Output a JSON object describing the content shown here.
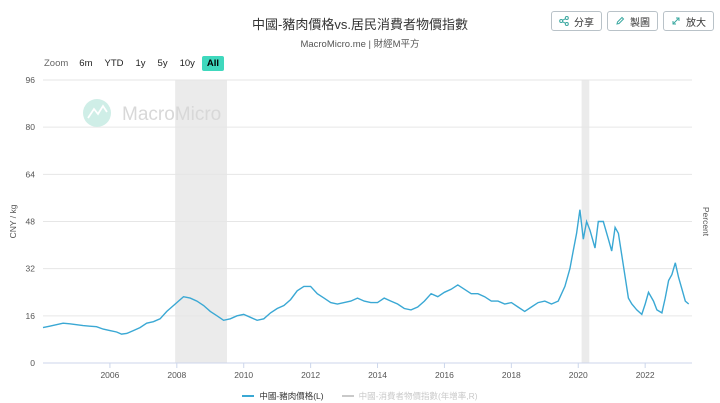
{
  "header": {
    "title": "中國-豬肉價格vs.居民消費者物價指數",
    "subtitle": "MacroMicro.me | 財經M平方"
  },
  "toolbar": {
    "share_label": "分享",
    "export_label": "製圖",
    "expand_label": "放大"
  },
  "zoom": {
    "label": "Zoom",
    "options": [
      "6m",
      "YTD",
      "1y",
      "5y",
      "10y",
      "All"
    ],
    "selected": "All"
  },
  "watermark": "MacroMicro",
  "colors": {
    "series_primary": "#3aa8d4",
    "series_hidden": "#c9c9c9",
    "shade": "#ebebeb",
    "grid": "#e6e6e6",
    "accent": "#3fd8bd"
  },
  "chart_data": {
    "type": "line",
    "ylabel": "CNY / kg",
    "y2label": "Percent",
    "ylim": [
      0,
      96
    ],
    "yticks": [
      0,
      16,
      32,
      48,
      64,
      80,
      96
    ],
    "xlim": [
      2004.0,
      2023.4
    ],
    "xticks": [
      2006,
      2008,
      2010,
      2012,
      2014,
      2016,
      2018,
      2020,
      2022
    ],
    "shaded_periods": [
      [
        2007.95,
        2009.5
      ],
      [
        2020.1,
        2020.33
      ]
    ],
    "grid": true,
    "legend_position": "bottom",
    "series": [
      {
        "name": "中國-豬肉價格(L)",
        "visible": true,
        "x": [
          2004.0,
          2004.2,
          2004.4,
          2004.6,
          2004.8,
          2005.0,
          2005.2,
          2005.4,
          2005.6,
          2005.8,
          2006.0,
          2006.2,
          2006.35,
          2006.5,
          2006.7,
          2006.9,
          2007.1,
          2007.3,
          2007.5,
          2007.7,
          2007.85,
          2008.0,
          2008.2,
          2008.4,
          2008.6,
          2008.8,
          2009.0,
          2009.2,
          2009.4,
          2009.6,
          2009.8,
          2010.0,
          2010.2,
          2010.4,
          2010.6,
          2010.8,
          2011.0,
          2011.2,
          2011.4,
          2011.6,
          2011.8,
          2012.0,
          2012.2,
          2012.4,
          2012.6,
          2012.8,
          2013.0,
          2013.2,
          2013.4,
          2013.6,
          2013.8,
          2014.0,
          2014.2,
          2014.4,
          2014.6,
          2014.8,
          2015.0,
          2015.2,
          2015.4,
          2015.6,
          2015.8,
          2016.0,
          2016.2,
          2016.4,
          2016.6,
          2016.8,
          2017.0,
          2017.2,
          2017.4,
          2017.6,
          2017.8,
          2018.0,
          2018.2,
          2018.4,
          2018.6,
          2018.8,
          2019.0,
          2019.2,
          2019.4,
          2019.6,
          2019.75,
          2019.85,
          2019.95,
          2020.05,
          2020.15,
          2020.25,
          2020.35,
          2020.5,
          2020.6,
          2020.75,
          2020.9,
          2021.0,
          2021.1,
          2021.2,
          2021.35,
          2021.5,
          2021.6,
          2021.75,
          2021.9,
          2022.0,
          2022.1,
          2022.25,
          2022.35,
          2022.5,
          2022.6,
          2022.7,
          2022.8,
          2022.9,
          2023.0,
          2023.1,
          2023.2,
          2023.3
        ],
        "y": [
          12,
          12.5,
          13,
          13.5,
          13.3,
          13,
          12.7,
          12.5,
          12.3,
          11.5,
          11,
          10.5,
          9.8,
          10,
          11,
          12,
          13.5,
          14,
          15,
          17.5,
          19,
          20.5,
          22.5,
          22,
          21,
          19.5,
          17.5,
          16,
          14.5,
          15,
          16,
          16.5,
          15.5,
          14.5,
          15,
          17,
          18.5,
          19.5,
          21.5,
          24.5,
          26,
          26,
          23.5,
          22,
          20.5,
          20,
          20.5,
          21,
          22,
          21,
          20.5,
          20.5,
          22,
          21,
          20,
          18.5,
          18,
          19,
          21,
          23.5,
          22.5,
          24,
          25,
          26.5,
          25,
          23.5,
          23.5,
          22.5,
          21,
          21,
          20,
          20.5,
          19,
          17.5,
          19,
          20.5,
          21,
          20,
          21,
          26,
          32,
          38,
          44,
          52,
          42,
          48,
          45,
          39,
          48,
          48,
          42,
          38,
          46,
          44,
          33,
          22,
          20,
          18,
          16.5,
          20,
          24,
          21,
          18,
          17,
          22,
          28,
          30,
          34,
          29,
          25,
          21,
          20
        ]
      },
      {
        "name": "中國-消費者物價指數(年增率,R)",
        "visible": false,
        "x": [],
        "y": []
      }
    ]
  }
}
